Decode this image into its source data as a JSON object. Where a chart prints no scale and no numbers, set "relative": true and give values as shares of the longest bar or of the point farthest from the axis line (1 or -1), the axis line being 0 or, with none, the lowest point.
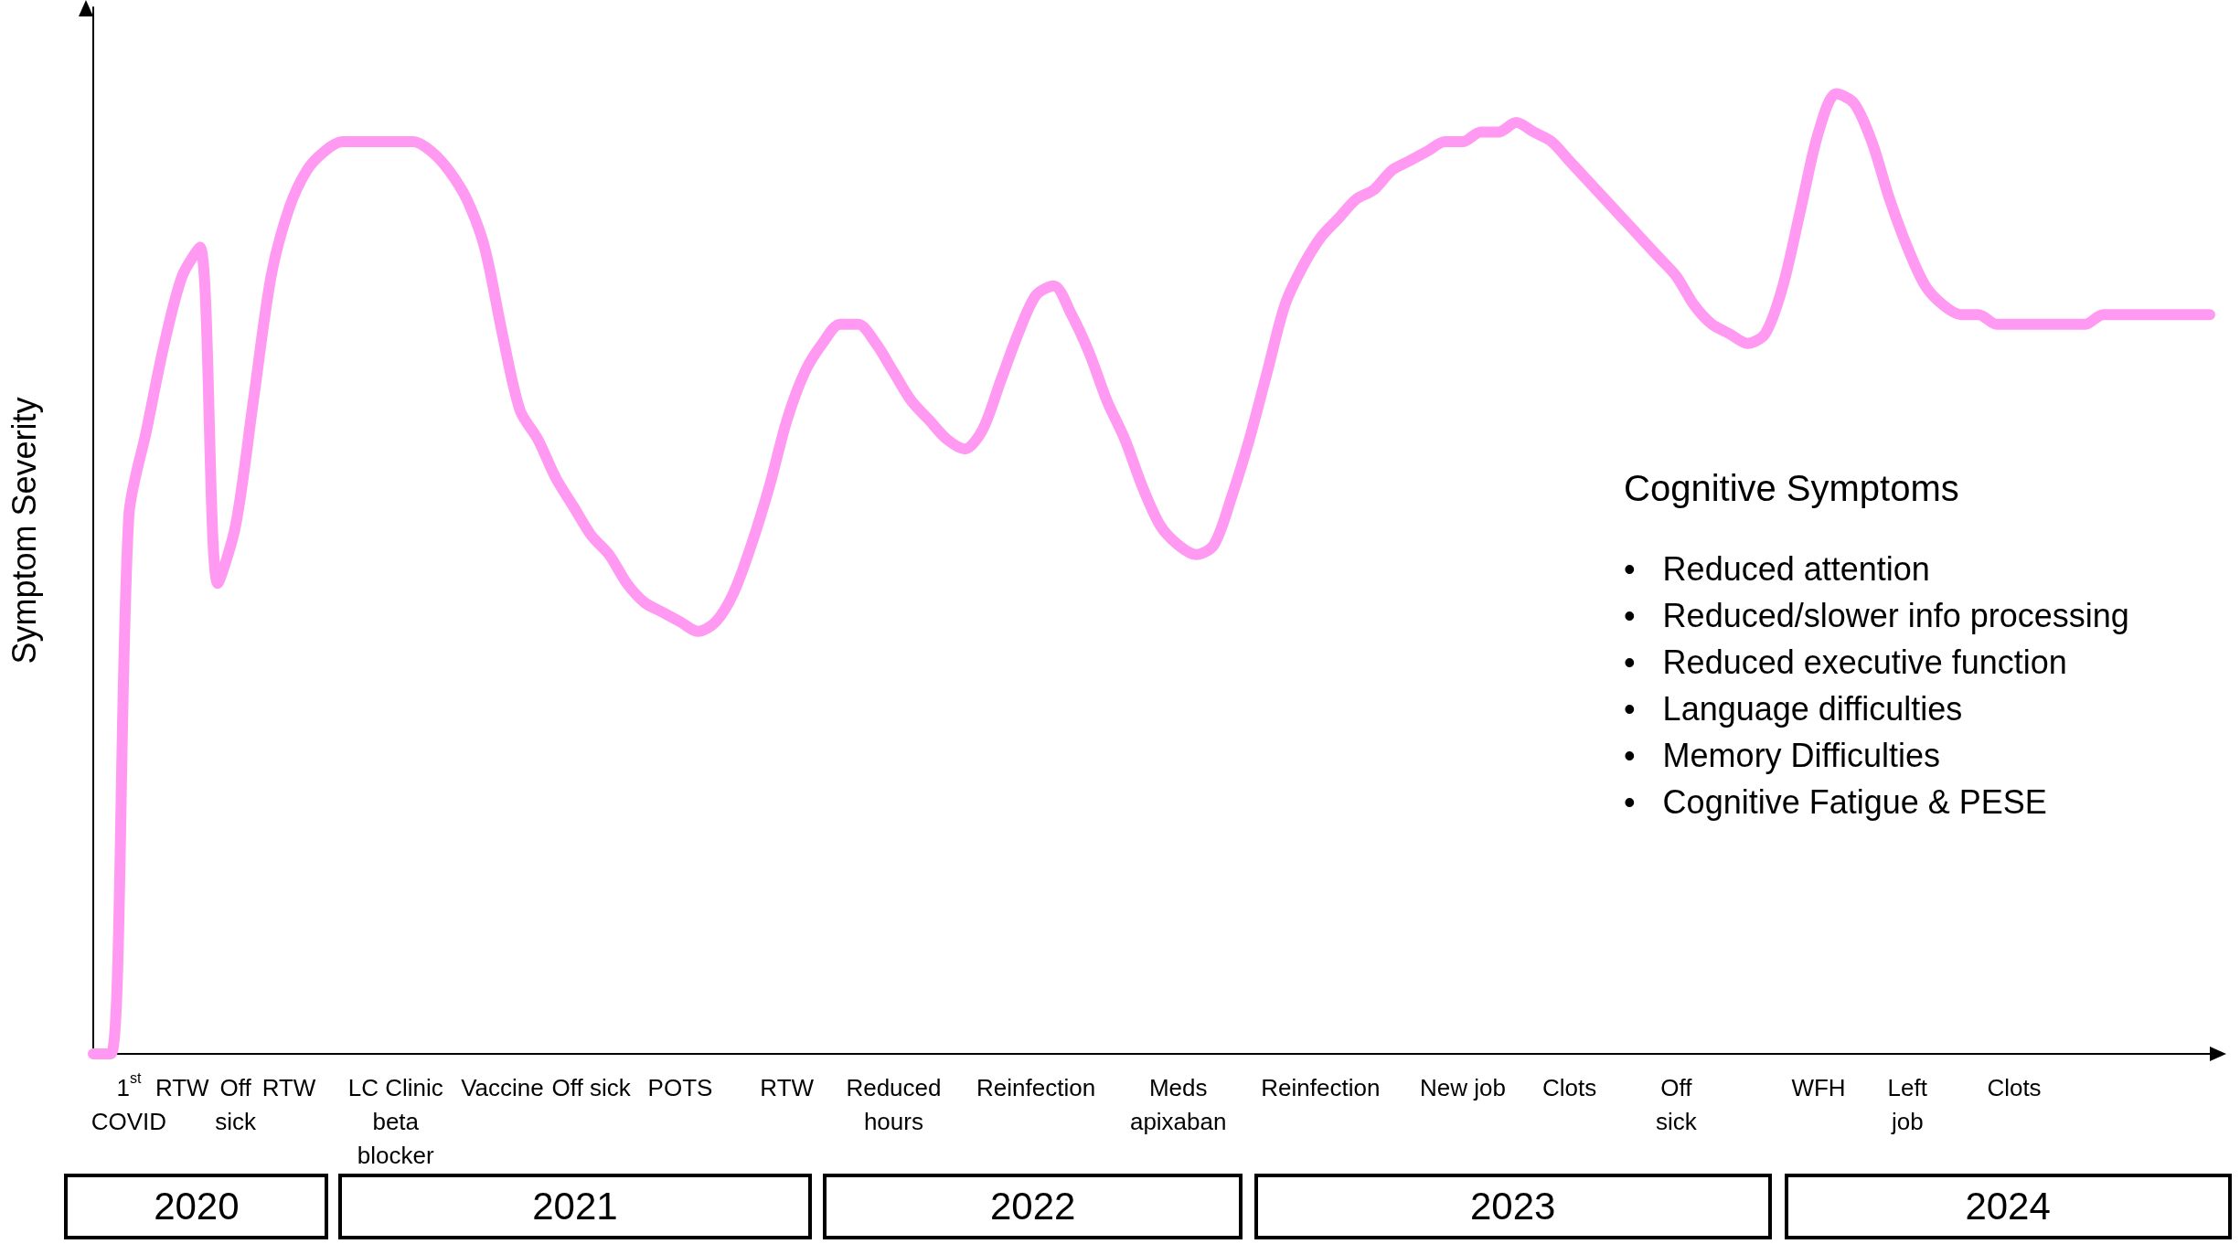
{
  "chart_data": {
    "type": "line",
    "relative": true,
    "ylabel": "Symptom Severity",
    "marker": "none",
    "line_style": "solid",
    "categories": [
      null,
      null,
      "1$^{st}$\nCOVID",
      null,
      null,
      "RTW",
      null,
      null,
      "Off\nsick",
      null,
      null,
      "RTW",
      null,
      null,
      null,
      null,
      null,
      "LC Clinic\nbeta\nblocker",
      null,
      null,
      null,
      null,
      null,
      "Vaccine",
      null,
      null,
      null,
      null,
      "Off sick",
      null,
      null,
      null,
      null,
      "POTS",
      null,
      null,
      null,
      null,
      null,
      "RTW",
      null,
      null,
      null,
      null,
      null,
      "Reduced\nhours",
      null,
      null,
      null,
      null,
      null,
      null,
      null,
      "Reinfection",
      null,
      null,
      null,
      null,
      null,
      null,
      null,
      "Meds\napixaban",
      null,
      null,
      null,
      null,
      null,
      null,
      null,
      "Reinfection",
      null,
      null,
      null,
      null,
      null,
      null,
      null,
      "New job",
      null,
      null,
      null,
      null,
      null,
      "Clots",
      null,
      null,
      null,
      null,
      null,
      "Off\nsick",
      null,
      null,
      null,
      null,
      null,
      null,
      null,
      "WFH",
      null,
      null,
      null,
      null,
      "Left\njob",
      null,
      null,
      null,
      null,
      null,
      "Clots",
      null,
      null,
      null,
      null,
      null,
      null,
      null,
      null,
      null,
      null,
      null
    ],
    "series": [
      {
        "color": "#ff99f2",
        "values": [
          0,
          0,
          0.56,
          0.65,
          0.74,
          0.81,
          0.84,
          0.49,
          0.55,
          0.68,
          0.81,
          0.88,
          0.92,
          0.94,
          0.95,
          0.95,
          0.95,
          0.95,
          0.95,
          0.94,
          0.92,
          0.89,
          0.84,
          0.75,
          0.67,
          0.64,
          0.6,
          0.57,
          0.54,
          0.52,
          0.49,
          0.47,
          0.46,
          0.45,
          0.44,
          0.45,
          0.48,
          0.53,
          0.59,
          0.66,
          0.71,
          0.74,
          0.76,
          0.76,
          0.74,
          0.71,
          0.68,
          0.66,
          0.64,
          0.63,
          0.65,
          0.7,
          0.75,
          0.79,
          0.8,
          0.77,
          0.73,
          0.68,
          0.64,
          0.59,
          0.55,
          0.53,
          0.52,
          0.53,
          0.58,
          0.64,
          0.71,
          0.78,
          0.82,
          0.85,
          0.87,
          0.89,
          0.9,
          0.92,
          0.93,
          0.94,
          0.95,
          0.95,
          0.96,
          0.96,
          0.97,
          0.96,
          0.95,
          0.93,
          0.91,
          0.89,
          0.87,
          0.85,
          0.83,
          0.81,
          0.78,
          0.76,
          0.75,
          0.74,
          0.75,
          0.8,
          0.88,
          0.96,
          1,
          0.99,
          0.95,
          0.89,
          0.84,
          0.8,
          0.78,
          0.77,
          0.77,
          0.76,
          0.76,
          0.76,
          0.76,
          0.76,
          0.76,
          0.77,
          0.77,
          0.77,
          0.77,
          0.77,
          0.77,
          0.77
        ]
      }
    ],
    "annotations": [
      "2020",
      "2021",
      "2022",
      "2023",
      "2024",
      "Cognitive Symptoms",
      "•   Reduced attention",
      "•   Reduced/slower info processing",
      "•   Reduced executive function",
      "•   Language difficulties",
      "•   Memory Difficulties",
      "•   Cognitive Fatigue & PESE"
    ]
  }
}
